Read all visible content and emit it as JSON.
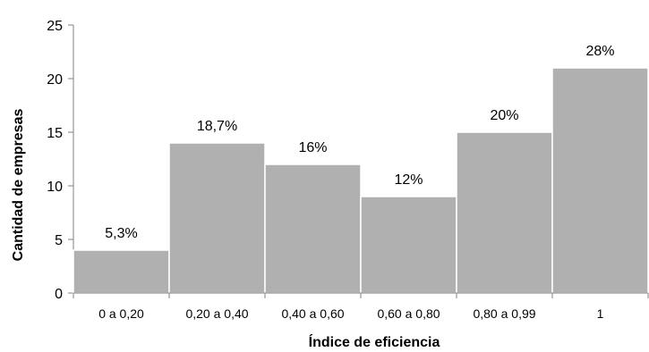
{
  "chart_data": {
    "type": "bar",
    "categories": [
      "0 a 0,20",
      "0,20 a 0,40",
      "0,40 a 0,60",
      "0,60 a 0,80",
      "0,80 a 0,99",
      "1"
    ],
    "values": [
      4,
      14,
      12,
      9,
      15,
      21
    ],
    "data_labels": [
      "5,3%",
      "18,7%",
      "16%",
      "12%",
      "20%",
      "28%"
    ],
    "xlabel": "Índice de eficiencia",
    "ylabel": "Cantidad de empresas",
    "ylim": [
      0,
      25
    ],
    "yticks": [
      "0",
      "5",
      "10",
      "15",
      "20",
      "25"
    ],
    "grid": false,
    "bar_color": "#b0b0b0",
    "axis_color": "#808080"
  }
}
